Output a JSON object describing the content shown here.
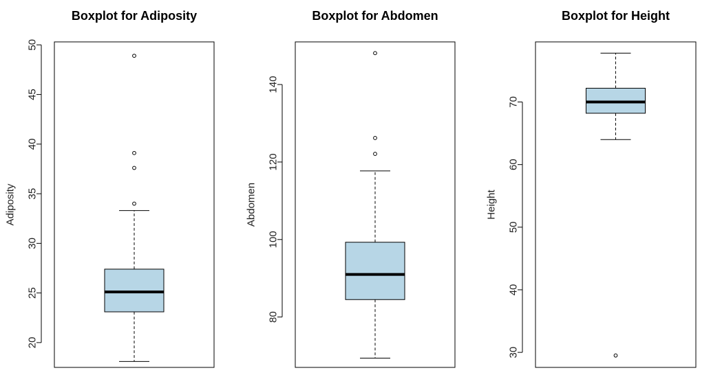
{
  "chart_data": [
    {
      "type": "boxplot",
      "title": "Boxplot for Adiposity",
      "ylabel": "Adiposity",
      "ylim": [
        17.5,
        50.3
      ],
      "yticks": [
        20,
        25,
        30,
        35,
        40,
        45,
        50
      ],
      "stats": {
        "min": 18.1,
        "q1": 23.1,
        "median": 25.1,
        "q3": 27.4,
        "max": 33.3
      },
      "outliers": [
        34.0,
        37.6,
        39.1,
        48.9
      ],
      "colors": {
        "box": "#b7d6e6",
        "stroke": "#000000"
      }
    },
    {
      "type": "boxplot",
      "title": "Boxplot for Abdomen",
      "ylabel": "Abdomen",
      "ylim": [
        67,
        151
      ],
      "yticks": [
        80,
        100,
        120,
        140
      ],
      "stats": {
        "min": 69.4,
        "q1": 84.5,
        "median": 91.0,
        "q3": 99.3,
        "max": 117.7
      },
      "outliers": [
        122.1,
        126.2,
        148.1
      ],
      "colors": {
        "box": "#b7d6e6",
        "stroke": "#000000"
      }
    },
    {
      "type": "boxplot",
      "title": "Boxplot for Height",
      "ylabel": "Height",
      "ylim": [
        27.6,
        79.6
      ],
      "yticks": [
        30,
        40,
        50,
        60,
        70
      ],
      "stats": {
        "min": 64.0,
        "q1": 68.2,
        "median": 70.0,
        "q3": 72.2,
        "max": 77.8
      },
      "outliers": [
        29.5
      ],
      "colors": {
        "box": "#b7d6e6",
        "stroke": "#000000"
      }
    }
  ]
}
